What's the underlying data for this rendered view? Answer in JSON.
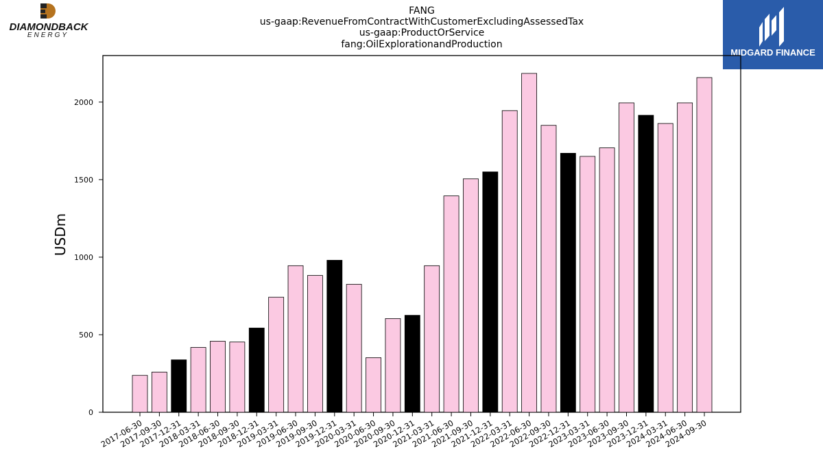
{
  "header": {
    "title_lines": [
      "FANG",
      "us-gaap:RevenueFromContractWithCustomerExcludingAssessedTax",
      "us-gaap:ProductOrService",
      "fang:OilExplorationandProduction"
    ]
  },
  "logo_left": {
    "text": "DIAMONDBACK",
    "subtext": "ENERGY",
    "icon": "diamondback-logo-icon"
  },
  "logo_right": {
    "text": "MIDGARD FINANCE",
    "icon": "midgard-logo-icon",
    "color": "#2a5caa"
  },
  "chart_data": {
    "type": "bar",
    "title": "",
    "xlabel": "",
    "ylabel": "USDm",
    "ylim": [
      0,
      2300
    ],
    "yticks": [
      0,
      500,
      1000,
      1500,
      2000
    ],
    "grid": false,
    "colors": {
      "quarter": "#fbc9e2",
      "year_end": "#000000",
      "edge": "#000000"
    },
    "categories": [
      "2017-06-30",
      "2017-09-30",
      "2017-12-31",
      "2018-03-31",
      "2018-06-30",
      "2018-09-30",
      "2018-12-31",
      "2019-03-31",
      "2019-06-30",
      "2019-09-30",
      "2019-12-31",
      "2020-03-31",
      "2020-06-30",
      "2020-09-30",
      "2020-12-31",
      "2021-03-31",
      "2021-06-30",
      "2021-09-30",
      "2021-12-31",
      "2022-03-31",
      "2022-06-30",
      "2022-09-30",
      "2022-12-31",
      "2023-03-31",
      "2023-06-30",
      "2023-09-30",
      "2023-12-31",
      "2024-03-31",
      "2024-06-30",
      "2024-09-30"
    ],
    "values": [
      238,
      259,
      338,
      418,
      458,
      453,
      543,
      742,
      945,
      882,
      980,
      825,
      352,
      604,
      625,
      945,
      1395,
      1505,
      1550,
      1945,
      2185,
      1850,
      1670,
      1650,
      1705,
      1995,
      1915,
      1862,
      1995,
      2158
    ]
  }
}
